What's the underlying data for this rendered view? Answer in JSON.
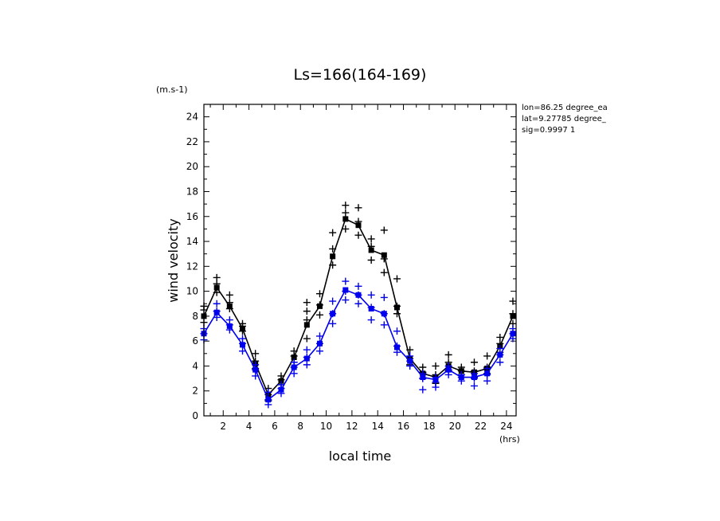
{
  "chart_data": {
    "type": "line",
    "title": "Ls=166(164-169)",
    "xlabel": "local time",
    "ylabel": "wind velocity",
    "y_unit": "(m.s-1)",
    "x_unit": "(hrs)",
    "xlim": [
      0.5,
      24.75
    ],
    "ylim": [
      0,
      25
    ],
    "x_ticks": [
      2,
      4,
      6,
      8,
      10,
      12,
      14,
      16,
      18,
      20,
      22,
      24
    ],
    "y_ticks": [
      0,
      2,
      4,
      6,
      8,
      10,
      12,
      14,
      16,
      18,
      20,
      22,
      24
    ],
    "grid": false,
    "annotations": [
      "lon=86.25 degree_ea",
      "lat=9.27785 degree_",
      "sig=0.9997 1"
    ],
    "x": [
      0.5,
      1.5,
      2.5,
      3.5,
      4.5,
      5.5,
      6.5,
      7.5,
      8.5,
      9.5,
      10.5,
      11.5,
      12.5,
      13.5,
      14.5,
      15.5,
      16.5,
      17.5,
      18.5,
      19.5,
      20.5,
      21.5,
      22.5,
      23.5,
      24.5
    ],
    "series": [
      {
        "color": "#000000",
        "values": [
          8.0,
          10.3,
          8.8,
          7.0,
          4.2,
          1.7,
          2.8,
          4.7,
          7.3,
          8.8,
          12.8,
          15.8,
          15.3,
          13.3,
          12.9,
          8.7,
          4.6,
          3.4,
          3.1,
          4.0,
          3.6,
          3.5,
          3.8,
          5.6,
          8.0
        ],
        "scatter": [
          [
            8.5,
            7.5,
            8.8
          ],
          [
            11.1,
            10.6,
            9.9
          ],
          [
            9.7,
            8.6,
            9.1
          ],
          [
            7.4,
            6.8,
            7.2
          ],
          [
            5.0,
            3.8,
            4.4
          ],
          [
            2.2,
            1.2,
            1.7
          ],
          [
            3.2,
            2.5,
            2.9
          ],
          [
            5.2,
            4.3,
            4.8
          ],
          [
            9.1,
            6.2,
            7.7,
            8.4
          ],
          [
            9.8,
            8.1,
            8.9
          ],
          [
            14.7,
            12.1,
            13.4
          ],
          [
            16.9,
            15.0,
            16.3
          ],
          [
            16.7,
            14.5,
            15.6
          ],
          [
            14.2,
            12.5,
            13.6
          ],
          [
            14.9,
            11.5,
            12.6
          ],
          [
            11.0,
            8.2,
            8.8
          ],
          [
            5.3,
            4.1,
            4.6
          ],
          [
            3.9,
            3.0,
            3.5
          ],
          [
            4.0,
            2.6,
            3.3
          ],
          [
            4.9,
            3.6,
            4.3
          ],
          [
            3.9,
            3.3,
            3.6
          ],
          [
            4.3,
            3.1,
            3.6
          ],
          [
            4.8,
            3.4,
            3.9
          ],
          [
            6.3,
            5.1,
            5.8
          ],
          [
            9.2,
            7.4,
            8.2
          ]
        ]
      },
      {
        "color": "#0000ee",
        "values": [
          6.6,
          8.3,
          7.2,
          5.7,
          3.7,
          1.3,
          2.1,
          3.9,
          4.6,
          5.8,
          8.2,
          10.1,
          9.7,
          8.6,
          8.2,
          5.5,
          4.4,
          3.1,
          2.9,
          3.7,
          3.1,
          3.1,
          3.4,
          4.9,
          6.6
        ],
        "scatter": [
          [
            7.0,
            6.1,
            6.6
          ],
          [
            9.0,
            7.9,
            8.4
          ],
          [
            7.7,
            6.9,
            7.3
          ],
          [
            6.2,
            5.2,
            5.8
          ],
          [
            4.1,
            3.2,
            3.7
          ],
          [
            1.9,
            0.9,
            1.3
          ],
          [
            2.5,
            1.8,
            2.2
          ],
          [
            4.3,
            3.4,
            3.9
          ],
          [
            5.3,
            4.1,
            4.7
          ],
          [
            6.4,
            5.2,
            5.8
          ],
          [
            9.2,
            7.4,
            8.2
          ],
          [
            10.8,
            9.3,
            10.0
          ],
          [
            10.4,
            9.0,
            9.7
          ],
          [
            9.7,
            7.7,
            8.7
          ],
          [
            9.5,
            7.3,
            8.2
          ],
          [
            6.8,
            5.1,
            5.6
          ],
          [
            4.8,
            4.0,
            4.4
          ],
          [
            3.4,
            2.1,
            3.0
          ],
          [
            3.1,
            2.3,
            2.7
          ],
          [
            4.0,
            3.3,
            3.7
          ],
          [
            3.3,
            2.8,
            3.1
          ],
          [
            3.4,
            2.4,
            3.0
          ],
          [
            3.8,
            2.8,
            3.3
          ],
          [
            5.4,
            4.3,
            4.9
          ],
          [
            7.0,
            6.2,
            6.6
          ]
        ]
      }
    ]
  }
}
